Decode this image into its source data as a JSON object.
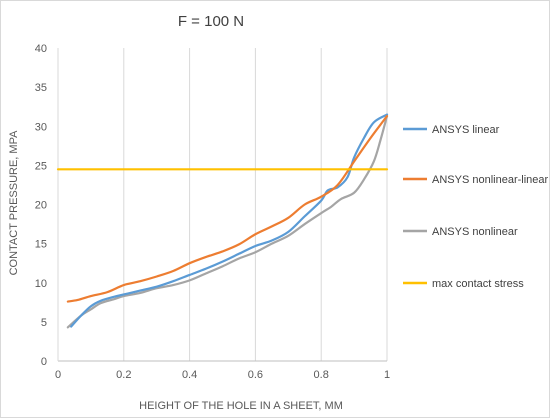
{
  "chart_data": {
    "type": "line",
    "title": "F = 100 N",
    "xlabel": "HEIGHT OF THE HOLE IN A SHEET, MM",
    "ylabel": "CONTACT PRESSURE, MPA",
    "xlim": [
      0,
      1
    ],
    "ylim": [
      0,
      40
    ],
    "xticks": [
      "0",
      "0.2",
      "0.4",
      "0.6",
      "0.8",
      "1"
    ],
    "yticks": [
      "0",
      "5",
      "10",
      "15",
      "20",
      "25",
      "30",
      "35",
      "40"
    ],
    "grid": "vertical",
    "legend_position": "right",
    "series": [
      {
        "name": "ANSYS linear",
        "color": "#5b9bd5",
        "x": [
          0.04,
          0.07,
          0.1,
          0.13,
          0.17,
          0.2,
          0.25,
          0.3,
          0.35,
          0.4,
          0.45,
          0.5,
          0.55,
          0.6,
          0.65,
          0.7,
          0.75,
          0.8,
          0.82,
          0.85,
          0.88,
          0.9,
          0.93,
          0.96,
          1.0
        ],
        "y": [
          4.4,
          5.8,
          7.0,
          7.7,
          8.2,
          8.5,
          9.0,
          9.5,
          10.2,
          11.0,
          11.8,
          12.7,
          13.7,
          14.7,
          15.4,
          16.5,
          18.5,
          20.5,
          21.8,
          22.2,
          23.5,
          26.0,
          28.5,
          30.5,
          31.5
        ]
      },
      {
        "name": "ANSYS nonlinear-linear",
        "color": "#ed7d31",
        "x": [
          0.03,
          0.06,
          0.1,
          0.15,
          0.2,
          0.25,
          0.3,
          0.35,
          0.4,
          0.45,
          0.5,
          0.55,
          0.6,
          0.65,
          0.7,
          0.75,
          0.8,
          0.85,
          0.9,
          0.95,
          1.0
        ],
        "y": [
          7.6,
          7.8,
          8.3,
          8.8,
          9.7,
          10.2,
          10.8,
          11.5,
          12.5,
          13.3,
          14.0,
          14.9,
          16.2,
          17.2,
          18.3,
          20.0,
          21.0,
          22.5,
          25.5,
          28.5,
          31.3
        ]
      },
      {
        "name": "ANSYS nonlinear",
        "color": "#a5a5a5",
        "x": [
          0.03,
          0.07,
          0.1,
          0.13,
          0.17,
          0.2,
          0.25,
          0.3,
          0.35,
          0.4,
          0.45,
          0.5,
          0.55,
          0.6,
          0.65,
          0.7,
          0.75,
          0.8,
          0.83,
          0.86,
          0.9,
          0.93,
          0.96,
          0.98,
          1.0
        ],
        "y": [
          4.3,
          5.8,
          6.6,
          7.4,
          7.9,
          8.3,
          8.7,
          9.3,
          9.7,
          10.3,
          11.2,
          12.1,
          13.1,
          13.9,
          15.0,
          16.0,
          17.5,
          18.9,
          19.7,
          20.7,
          21.5,
          23.2,
          25.5,
          28.2,
          31.3
        ]
      },
      {
        "name": "max contact stress",
        "color": "#ffc000",
        "x": [
          0,
          1
        ],
        "y": [
          24.5,
          24.5
        ]
      }
    ]
  }
}
